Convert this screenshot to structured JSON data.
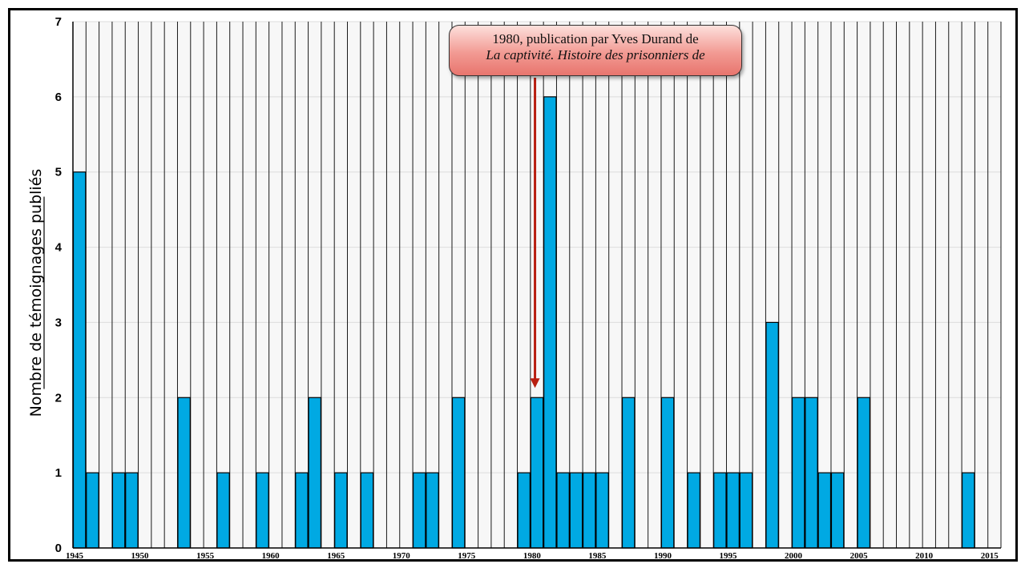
{
  "chart_data": {
    "type": "bar",
    "title": "",
    "xlabel": "",
    "ylabel": "Nombre de témoignages publiés",
    "xlim": [
      1945,
      2016
    ],
    "ylim": [
      0,
      7
    ],
    "y_ticks": [
      "0",
      "1",
      "2",
      "3",
      "4",
      "5",
      "6",
      "7"
    ],
    "x_ticks": [
      "1945",
      "1950",
      "1955",
      "1960",
      "1965",
      "1970",
      "1975",
      "1980",
      "1985",
      "1990",
      "1995",
      "2000",
      "2005",
      "2010",
      "2015"
    ],
    "grid": "vertical lines at every year",
    "bar_color": "#00a9e3",
    "series": [
      {
        "x": [
          1945,
          1946,
          1948,
          1949,
          1953,
          1956,
          1959,
          1962,
          1963,
          1965,
          1967,
          1971,
          1972,
          1974,
          1979,
          1980,
          1981,
          1982,
          1983,
          1984,
          1985,
          1987,
          1990,
          1992,
          1994,
          1995,
          1996,
          1998,
          2000,
          2001,
          2002,
          2003,
          2005,
          2013
        ],
        "values": [
          5,
          1,
          1,
          1,
          2,
          1,
          1,
          1,
          2,
          1,
          1,
          1,
          1,
          2,
          1,
          2,
          6,
          1,
          1,
          1,
          1,
          2,
          2,
          1,
          1,
          1,
          1,
          3,
          2,
          2,
          1,
          1,
          2,
          1
        ]
      }
    ],
    "annotation": {
      "x": 1980,
      "y": 2,
      "line1": "1980, publication par Yves Durand de",
      "line2": "La captivité. Histoire des prisonniers de",
      "arrow_color": "#b81e10"
    }
  }
}
